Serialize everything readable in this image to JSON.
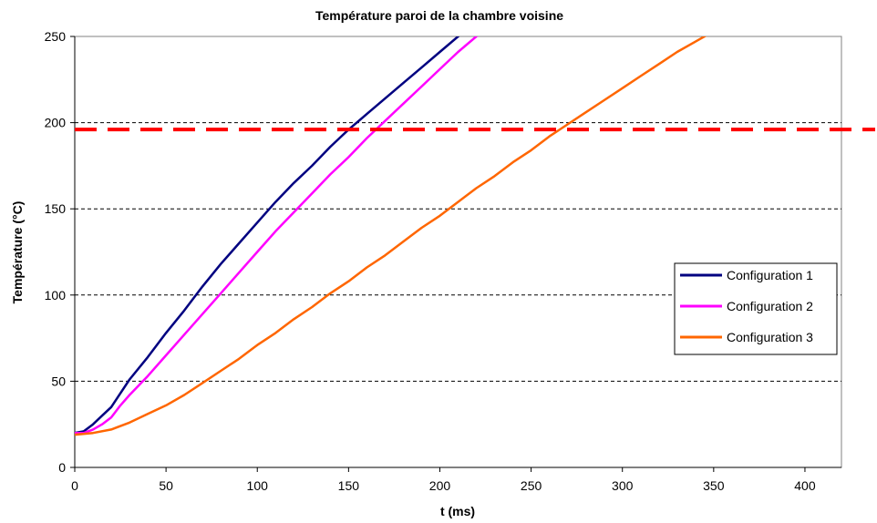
{
  "chart_data": {
    "type": "line",
    "title": "Température paroi de la chambre voisine",
    "xlabel": "t (ms)",
    "ylabel": "Température (°C)",
    "xlim": [
      0,
      420
    ],
    "ylim": [
      0,
      250
    ],
    "x_ticks": [
      0,
      50,
      100,
      150,
      200,
      250,
      300,
      350,
      400
    ],
    "y_ticks": [
      0,
      50,
      100,
      150,
      200,
      250
    ],
    "grid": "horizontal dashed",
    "legend_position": "right",
    "threshold": {
      "value": 196,
      "color": "#ff0000",
      "style": "dashed"
    },
    "series": [
      {
        "name": "Configuration 1",
        "color": "#000080",
        "points": [
          [
            0,
            20
          ],
          [
            5,
            21
          ],
          [
            10,
            25
          ],
          [
            15,
            30
          ],
          [
            20,
            35
          ],
          [
            25,
            43
          ],
          [
            30,
            51
          ],
          [
            40,
            64
          ],
          [
            50,
            78
          ],
          [
            60,
            91
          ],
          [
            70,
            105
          ],
          [
            80,
            118
          ],
          [
            90,
            130
          ],
          [
            100,
            142
          ],
          [
            110,
            154
          ],
          [
            120,
            165
          ],
          [
            130,
            175
          ],
          [
            140,
            186
          ],
          [
            150,
            196
          ],
          [
            160,
            205
          ],
          [
            170,
            214
          ],
          [
            180,
            223
          ],
          [
            190,
            232
          ],
          [
            200,
            241
          ],
          [
            210,
            250
          ],
          [
            218,
            257
          ]
        ]
      },
      {
        "name": "Configuration 2",
        "color": "#ff00ff",
        "points": [
          [
            0,
            20
          ],
          [
            5,
            20
          ],
          [
            10,
            22
          ],
          [
            15,
            25
          ],
          [
            20,
            29
          ],
          [
            25,
            36
          ],
          [
            30,
            42
          ],
          [
            40,
            53
          ],
          [
            50,
            65
          ],
          [
            60,
            77
          ],
          [
            70,
            89
          ],
          [
            80,
            101
          ],
          [
            90,
            113
          ],
          [
            100,
            125
          ],
          [
            110,
            137
          ],
          [
            120,
            148
          ],
          [
            130,
            159
          ],
          [
            140,
            170
          ],
          [
            150,
            180
          ],
          [
            160,
            191
          ],
          [
            170,
            201
          ],
          [
            180,
            211
          ],
          [
            190,
            221
          ],
          [
            200,
            231
          ],
          [
            210,
            241
          ],
          [
            220,
            250
          ],
          [
            230,
            259
          ]
        ]
      },
      {
        "name": "Configuration 3",
        "color": "#ff6600",
        "points": [
          [
            0,
            19
          ],
          [
            10,
            20
          ],
          [
            20,
            22
          ],
          [
            30,
            26
          ],
          [
            40,
            31
          ],
          [
            50,
            36
          ],
          [
            60,
            42
          ],
          [
            70,
            49
          ],
          [
            80,
            56
          ],
          [
            90,
            63
          ],
          [
            100,
            71
          ],
          [
            110,
            78
          ],
          [
            120,
            86
          ],
          [
            130,
            93
          ],
          [
            140,
            101
          ],
          [
            150,
            108
          ],
          [
            160,
            116
          ],
          [
            170,
            123
          ],
          [
            180,
            131
          ],
          [
            190,
            139
          ],
          [
            200,
            146
          ],
          [
            210,
            154
          ],
          [
            220,
            162
          ],
          [
            230,
            169
          ],
          [
            240,
            177
          ],
          [
            250,
            184
          ],
          [
            260,
            192
          ],
          [
            270,
            199
          ],
          [
            280,
            206
          ],
          [
            290,
            213
          ],
          [
            300,
            220
          ],
          [
            310,
            227
          ],
          [
            320,
            234
          ],
          [
            330,
            241
          ],
          [
            340,
            247
          ],
          [
            350,
            253
          ],
          [
            360,
            258
          ]
        ]
      }
    ]
  }
}
